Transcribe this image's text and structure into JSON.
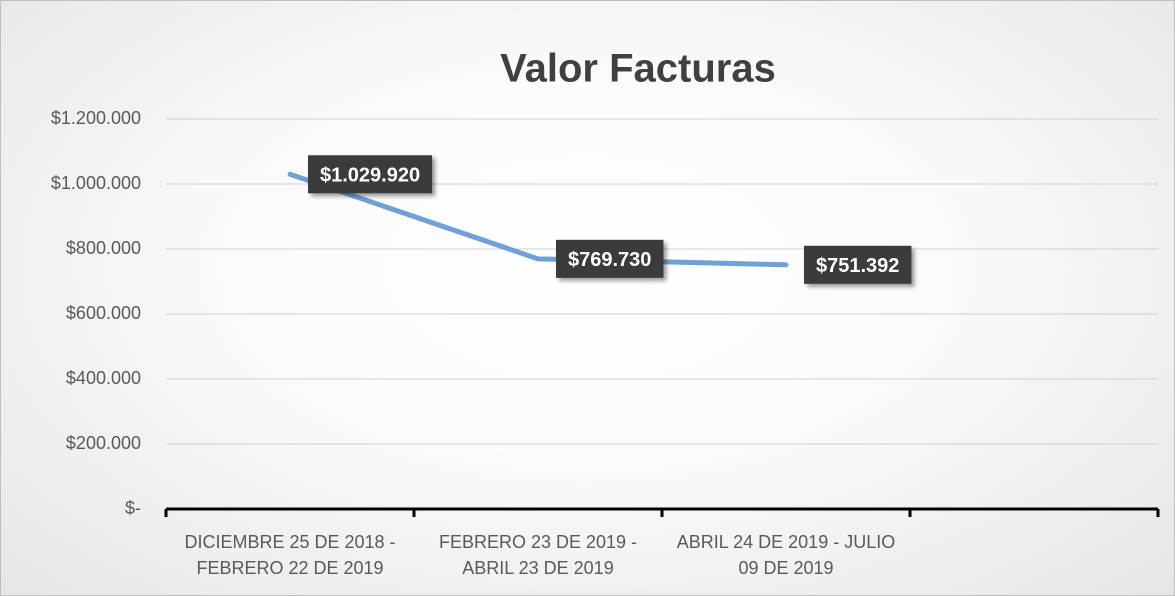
{
  "chart_data": {
    "type": "line",
    "title": "Valor Facturas",
    "categories": [
      "DICIEMBRE 25 DE 2018 - FEBRERO 22 DE 2019",
      "FEBRERO 23 DE 2019 - ABRIL 23 DE 2019",
      "ABRIL 24 DE 2019 - JULIO 09 DE 2019",
      null
    ],
    "series": [
      {
        "name": null,
        "color": "#6fa1d8",
        "values": [
          1029920,
          769730,
          751392,
          null
        ],
        "value_labels": [
          "$1.029.920",
          "$769.730",
          "$751.392",
          null
        ]
      }
    ],
    "ylim": [
      0,
      1200000
    ],
    "yticks": [
      {
        "value": 0,
        "label": "$-"
      },
      {
        "value": 200000,
        "label": "$200.000"
      },
      {
        "value": 400000,
        "label": "$400.000"
      },
      {
        "value": 600000,
        "label": "$600.000"
      },
      {
        "value": 800000,
        "label": "$800.000"
      },
      {
        "value": 1000000,
        "label": "$1.000.000"
      },
      {
        "value": 1200000,
        "label": "$1.200.000"
      }
    ],
    "grid": true
  }
}
